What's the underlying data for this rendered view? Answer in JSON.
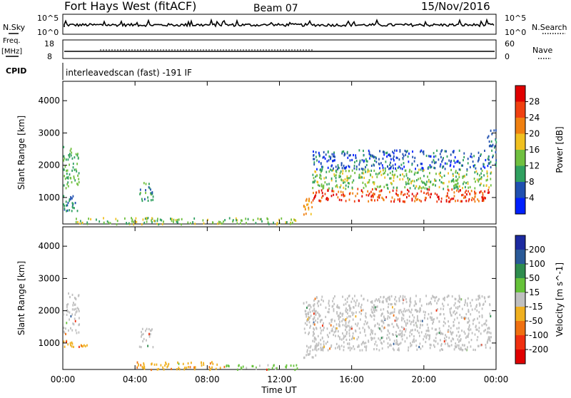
{
  "header": {
    "station": "Fort Hays West (fitACF)",
    "beam": "Beam 07",
    "date": "15/Nov/2016"
  },
  "strip": {
    "nsky_label": "N.Sky",
    "nsky_ticks": [
      "10^5",
      "10^0"
    ],
    "nsearch_label": "N.Search",
    "nsearch_ticks": [
      "10^5",
      "10^0"
    ],
    "freq_label_1": "Freq.",
    "freq_label_2": "[MHz]",
    "freq_ticks": [
      "18",
      "8"
    ],
    "nave_label": "Nave",
    "nave_ticks": [
      "60",
      "0"
    ],
    "cpid_label": "CPID",
    "cpid_text": "interleavedscan (fast) -191 IF"
  },
  "colors": {
    "ground_scatter": "#c0c0c0"
  },
  "chart_data": [
    {
      "type": "heatmap",
      "title": "",
      "xlabel": "Time UT",
      "ylabel": "Slant Range [km]",
      "xticks": [
        "00:00",
        "04:00",
        "08:00",
        "12:00",
        "16:00",
        "20:00",
        "00:00"
      ],
      "yticks": [
        "1000",
        "2000",
        "3000",
        "4000"
      ],
      "xlim_hours": [
        0,
        24
      ],
      "ylim_km": [
        180,
        4600
      ],
      "colorbar": {
        "label": "Power [dB]",
        "ticks": [
          "4",
          "8",
          "12",
          "16",
          "20",
          "24",
          "28"
        ],
        "colors": [
          "#0020ff",
          "#2050b0",
          "#30a060",
          "#70c040",
          "#f0c020",
          "#f08010",
          "#f04010",
          "#e00000"
        ]
      },
      "echo_regions": [
        {
          "t0": 0.0,
          "t1": 0.9,
          "r0": 1300,
          "r1": 2600,
          "power_db": 12
        },
        {
          "t0": 0.0,
          "t1": 0.8,
          "r0": 600,
          "r1": 1100,
          "power_db": 8
        },
        {
          "t0": 4.2,
          "t1": 5.0,
          "r0": 900,
          "r1": 1500,
          "power_db": 10
        },
        {
          "t0": 0.5,
          "t1": 13.0,
          "r0": 200,
          "r1": 400,
          "power_db": 14
        },
        {
          "t0": 13.3,
          "t1": 13.8,
          "r0": 500,
          "r1": 1000,
          "power_db": 20
        },
        {
          "t0": 13.8,
          "t1": 23.7,
          "r0": 900,
          "r1": 1300,
          "power_db": 26
        },
        {
          "t0": 13.8,
          "t1": 23.7,
          "r0": 1300,
          "r1": 1900,
          "power_db": 14
        },
        {
          "t0": 13.8,
          "t1": 23.7,
          "r0": 1900,
          "r1": 2500,
          "power_db": 6
        },
        {
          "t0": 23.5,
          "t1": 24.0,
          "r0": 2000,
          "r1": 3200,
          "power_db": 8
        }
      ]
    },
    {
      "type": "heatmap",
      "title": "",
      "xlabel": "Time UT",
      "ylabel": "Slant Range [km]",
      "xticks": [
        "00:00",
        "04:00",
        "08:00",
        "12:00",
        "16:00",
        "20:00",
        "00:00"
      ],
      "yticks": [
        "1000",
        "2000",
        "3000",
        "4000"
      ],
      "xlim_hours": [
        0,
        24
      ],
      "ylim_km": [
        180,
        4600
      ],
      "colorbar": {
        "label": "Velocity [m s^-1]",
        "ticks": [
          "200",
          "100",
          "50",
          "15",
          "-15",
          "-50",
          "-100",
          "-200"
        ],
        "colors": [
          "#1c2aa0",
          "#2a5a98",
          "#2e8c4e",
          "#66c23a",
          "#c0c0c0",
          "#f0b020",
          "#f07010",
          "#f03010",
          "#e00000"
        ]
      },
      "echo_regions": [
        {
          "t0": 0.0,
          "t1": 0.9,
          "r0": 1300,
          "r1": 2600,
          "velocity": 0
        },
        {
          "t0": 0.0,
          "t1": 1.5,
          "r0": 900,
          "r1": 1100,
          "velocity": -40
        },
        {
          "t0": 4.2,
          "t1": 5.0,
          "r0": 900,
          "r1": 1500,
          "velocity": 0
        },
        {
          "t0": 4.0,
          "t1": 9.0,
          "r0": 200,
          "r1": 450,
          "velocity": -40
        },
        {
          "t0": 9.0,
          "t1": 13.0,
          "r0": 200,
          "r1": 350,
          "velocity": 25
        },
        {
          "t0": 13.3,
          "t1": 14.0,
          "r0": 500,
          "r1": 2300,
          "velocity": 0
        },
        {
          "t0": 13.8,
          "t1": 23.7,
          "r0": 800,
          "r1": 1600,
          "velocity": 0
        },
        {
          "t0": 13.8,
          "t1": 23.7,
          "r0": 1600,
          "r1": 2500,
          "velocity": 0
        }
      ]
    }
  ]
}
